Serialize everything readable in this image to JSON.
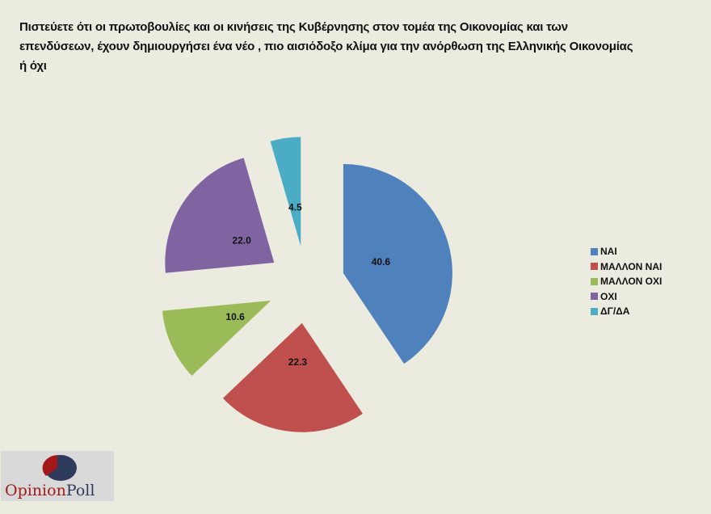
{
  "title": "Πιστεύετε ότι οι πρωτοβουλίες και οι κινήσεις της Κυβέρνησης στον τομέα της Οικονομίας και των επενδύσεων, έχουν δημιουργήσει ένα νέο , πιο αισιόδοξο κλίμα για την ανόρθωση της Ελληνικής Οικονομίας ή όχι",
  "chart_data": {
    "type": "pie",
    "exploded": true,
    "title": "Πιστεύετε ότι οι πρωτοβουλίες και οι κινήσεις της Κυβέρνησης στον τομέα της Οικονομίας και των επενδύσεων, έχουν δημιουργήσει ένα νέο , πιο αισιόδοξο κλίμα για την ανόρθωση της Ελληνικής Οικονομίας ή όχι",
    "categories": [
      "ΝΑΙ",
      "ΜΑΛΛΟΝ ΝΑΙ",
      "ΜΑΛΛΟΝ ΟΧΙ",
      "ΟΧΙ",
      "ΔΓ/ΔΑ"
    ],
    "values": [
      40.6,
      22.3,
      10.6,
      22.0,
      4.5
    ],
    "data_labels": [
      "40.6",
      "22.3",
      "10.6",
      "22.0",
      "4.5"
    ],
    "colors": [
      "#4f81bd",
      "#c0504d",
      "#9bbb59",
      "#8064a2",
      "#4bacc6"
    ],
    "legend": "right"
  },
  "logo": {
    "text_part1": "Opinion",
    "text_part2": "Poll",
    "colors": [
      "#a3191b",
      "#2e3a5c"
    ]
  }
}
